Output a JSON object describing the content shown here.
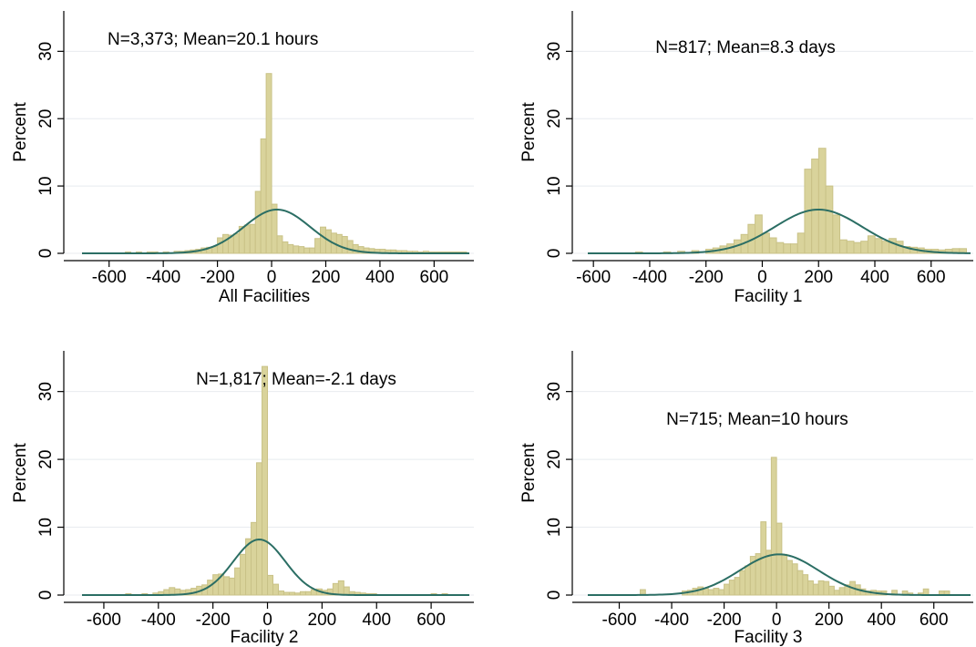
{
  "chart_data": [
    {
      "type": "bar",
      "xlabel": "All Facilities",
      "ylabel": "Percent",
      "annotation": "N=3,373; Mean=20.1 hours",
      "xlim": [
        -700,
        730
      ],
      "ylim": [
        0,
        36
      ],
      "xticks": [
        -600,
        -400,
        -200,
        0,
        200,
        400,
        600
      ],
      "yticks": [
        0,
        10,
        20,
        30
      ],
      "grid": true,
      "bin_width": 20,
      "bins": [
        {
          "x": -530,
          "y": 0.2
        },
        {
          "x": -490,
          "y": 0.2
        },
        {
          "x": -450,
          "y": 0.2
        },
        {
          "x": -430,
          "y": 0.2
        },
        {
          "x": -390,
          "y": 0.2
        },
        {
          "x": -350,
          "y": 0.3
        },
        {
          "x": -330,
          "y": 0.3
        },
        {
          "x": -310,
          "y": 0.4
        },
        {
          "x": -290,
          "y": 0.5
        },
        {
          "x": -270,
          "y": 0.6
        },
        {
          "x": -250,
          "y": 0.8
        },
        {
          "x": -230,
          "y": 0.9
        },
        {
          "x": -210,
          "y": 1.0
        },
        {
          "x": -190,
          "y": 2.3
        },
        {
          "x": -170,
          "y": 2.8
        },
        {
          "x": -150,
          "y": 2.7
        },
        {
          "x": -130,
          "y": 2.9
        },
        {
          "x": -110,
          "y": 4.0
        },
        {
          "x": -90,
          "y": 4.2
        },
        {
          "x": -70,
          "y": 4.3
        },
        {
          "x": -50,
          "y": 9.2
        },
        {
          "x": -30,
          "y": 17.0
        },
        {
          "x": -10,
          "y": 26.7
        },
        {
          "x": 10,
          "y": 7.3
        },
        {
          "x": 30,
          "y": 2.6
        },
        {
          "x": 50,
          "y": 1.7
        },
        {
          "x": 70,
          "y": 1.3
        },
        {
          "x": 90,
          "y": 1.1
        },
        {
          "x": 110,
          "y": 1.0
        },
        {
          "x": 130,
          "y": 0.8
        },
        {
          "x": 150,
          "y": 0.8
        },
        {
          "x": 170,
          "y": 2.2
        },
        {
          "x": 190,
          "y": 3.9
        },
        {
          "x": 210,
          "y": 3.5
        },
        {
          "x": 230,
          "y": 3.0
        },
        {
          "x": 250,
          "y": 2.8
        },
        {
          "x": 270,
          "y": 2.5
        },
        {
          "x": 290,
          "y": 1.9
        },
        {
          "x": 310,
          "y": 1.3
        },
        {
          "x": 330,
          "y": 1.0
        },
        {
          "x": 350,
          "y": 0.8
        },
        {
          "x": 370,
          "y": 0.7
        },
        {
          "x": 390,
          "y": 0.6
        },
        {
          "x": 410,
          "y": 0.6
        },
        {
          "x": 430,
          "y": 0.5
        },
        {
          "x": 450,
          "y": 0.5
        },
        {
          "x": 470,
          "y": 0.4
        },
        {
          "x": 490,
          "y": 0.4
        },
        {
          "x": 510,
          "y": 0.3
        },
        {
          "x": 530,
          "y": 0.3
        },
        {
          "x": 550,
          "y": 0.2
        },
        {
          "x": 570,
          "y": 0.3
        },
        {
          "x": 590,
          "y": 0.2
        },
        {
          "x": 610,
          "y": 0.2
        },
        {
          "x": 630,
          "y": 0.2
        },
        {
          "x": 650,
          "y": 0.2
        },
        {
          "x": 670,
          "y": 0.2
        },
        {
          "x": 690,
          "y": 0.2
        },
        {
          "x": 710,
          "y": 0.2
        }
      ],
      "normal_curve": {
        "mean": 20,
        "sd": 122,
        "peak": 6.5
      }
    },
    {
      "type": "bar",
      "xlabel": "Facility 1",
      "ylabel": "Percent",
      "annotation": "N=817; Mean=8.3 days",
      "xlim": [
        -620,
        740
      ],
      "ylim": [
        0,
        36
      ],
      "xticks": [
        -600,
        -400,
        -200,
        0,
        200,
        400,
        600
      ],
      "yticks": [
        0,
        10,
        20,
        30
      ],
      "grid": true,
      "bin_width": 25,
      "bins": [
        {
          "x": -438,
          "y": 0.2
        },
        {
          "x": -338,
          "y": 0.2
        },
        {
          "x": -288,
          "y": 0.3
        },
        {
          "x": -238,
          "y": 0.4
        },
        {
          "x": -188,
          "y": 0.6
        },
        {
          "x": -163,
          "y": 0.8
        },
        {
          "x": -138,
          "y": 1.1
        },
        {
          "x": -113,
          "y": 1.4
        },
        {
          "x": -88,
          "y": 2.0
        },
        {
          "x": -63,
          "y": 2.8
        },
        {
          "x": -38,
          "y": 4.3
        },
        {
          "x": -13,
          "y": 5.7
        },
        {
          "x": 13,
          "y": 3.0
        },
        {
          "x": 38,
          "y": 2.3
        },
        {
          "x": 63,
          "y": 1.6
        },
        {
          "x": 88,
          "y": 1.4
        },
        {
          "x": 113,
          "y": 1.4
        },
        {
          "x": 138,
          "y": 3.0
        },
        {
          "x": 163,
          "y": 12.5
        },
        {
          "x": 188,
          "y": 14.0
        },
        {
          "x": 213,
          "y": 15.6
        },
        {
          "x": 238,
          "y": 10.0
        },
        {
          "x": 263,
          "y": 5.7
        },
        {
          "x": 288,
          "y": 2.0
        },
        {
          "x": 313,
          "y": 1.8
        },
        {
          "x": 338,
          "y": 1.6
        },
        {
          "x": 363,
          "y": 1.8
        },
        {
          "x": 388,
          "y": 2.6
        },
        {
          "x": 413,
          "y": 2.2
        },
        {
          "x": 438,
          "y": 1.8
        },
        {
          "x": 463,
          "y": 2.2
        },
        {
          "x": 488,
          "y": 1.8
        },
        {
          "x": 513,
          "y": 1.0
        },
        {
          "x": 538,
          "y": 0.9
        },
        {
          "x": 563,
          "y": 0.8
        },
        {
          "x": 588,
          "y": 0.6
        },
        {
          "x": 613,
          "y": 0.6
        },
        {
          "x": 638,
          "y": 0.5
        },
        {
          "x": 663,
          "y": 0.6
        },
        {
          "x": 688,
          "y": 0.7
        },
        {
          "x": 713,
          "y": 0.7
        }
      ],
      "normal_curve": {
        "mean": 200,
        "sd": 155,
        "peak": 6.5
      }
    },
    {
      "type": "bar",
      "xlabel": "Facility 2",
      "ylabel": "Percent",
      "annotation": "N=1,817; Mean=-2.1 days",
      "xlim": [
        -680,
        740
      ],
      "ylim": [
        0,
        36
      ],
      "xticks": [
        -600,
        -400,
        -200,
        0,
        200,
        400,
        600
      ],
      "yticks": [
        0,
        10,
        20,
        30
      ],
      "grid": true,
      "bin_width": 20,
      "bins": [
        {
          "x": -510,
          "y": 0.2
        },
        {
          "x": -450,
          "y": 0.2
        },
        {
          "x": -410,
          "y": 0.3
        },
        {
          "x": -390,
          "y": 0.5
        },
        {
          "x": -370,
          "y": 0.8
        },
        {
          "x": -350,
          "y": 1.1
        },
        {
          "x": -330,
          "y": 0.9
        },
        {
          "x": -310,
          "y": 0.7
        },
        {
          "x": -290,
          "y": 0.8
        },
        {
          "x": -270,
          "y": 1.0
        },
        {
          "x": -250,
          "y": 1.3
        },
        {
          "x": -230,
          "y": 1.5
        },
        {
          "x": -210,
          "y": 2.2
        },
        {
          "x": -190,
          "y": 3.0
        },
        {
          "x": -170,
          "y": 3.1
        },
        {
          "x": -150,
          "y": 2.7
        },
        {
          "x": -130,
          "y": 2.5
        },
        {
          "x": -110,
          "y": 4.0
        },
        {
          "x": -90,
          "y": 6.0
        },
        {
          "x": -70,
          "y": 8.3
        },
        {
          "x": -50,
          "y": 10.7
        },
        {
          "x": -30,
          "y": 19.5
        },
        {
          "x": -10,
          "y": 33.7
        },
        {
          "x": 10,
          "y": 2.9
        },
        {
          "x": 30,
          "y": 1.6
        },
        {
          "x": 50,
          "y": 0.6
        },
        {
          "x": 70,
          "y": 0.4
        },
        {
          "x": 90,
          "y": 0.4
        },
        {
          "x": 110,
          "y": 0.3
        },
        {
          "x": 130,
          "y": 0.5
        },
        {
          "x": 150,
          "y": 0.5
        },
        {
          "x": 170,
          "y": 0.8
        },
        {
          "x": 190,
          "y": 0.9
        },
        {
          "x": 210,
          "y": 0.7
        },
        {
          "x": 230,
          "y": 0.9
        },
        {
          "x": 250,
          "y": 1.7
        },
        {
          "x": 270,
          "y": 2.1
        },
        {
          "x": 290,
          "y": 1.2
        },
        {
          "x": 310,
          "y": 0.5
        },
        {
          "x": 330,
          "y": 0.4
        },
        {
          "x": 350,
          "y": 0.3
        },
        {
          "x": 370,
          "y": 0.2
        },
        {
          "x": 390,
          "y": 0.2
        },
        {
          "x": 610,
          "y": 0.2
        },
        {
          "x": 650,
          "y": 0.2
        }
      ],
      "normal_curve": {
        "mean": -30,
        "sd": 95,
        "peak": 8.2
      }
    },
    {
      "type": "bar",
      "xlabel": "Facility 3",
      "ylabel": "Percent",
      "annotation": "N=715; Mean=10 hours",
      "xlim": [
        -720,
        740
      ],
      "ylim": [
        0,
        36
      ],
      "xticks": [
        -600,
        -400,
        -200,
        0,
        200,
        400,
        600
      ],
      "yticks": [
        0,
        10,
        20,
        30
      ],
      "grid": true,
      "bin_width": 20,
      "bins": [
        {
          "x": -510,
          "y": 0.8
        },
        {
          "x": -350,
          "y": 0.6
        },
        {
          "x": -330,
          "y": 0.7
        },
        {
          "x": -310,
          "y": 1.0
        },
        {
          "x": -290,
          "y": 1.2
        },
        {
          "x": -270,
          "y": 1.0
        },
        {
          "x": -250,
          "y": 0.8
        },
        {
          "x": -230,
          "y": 1.0
        },
        {
          "x": -210,
          "y": 0.8
        },
        {
          "x": -190,
          "y": 1.6
        },
        {
          "x": -170,
          "y": 2.2
        },
        {
          "x": -150,
          "y": 2.6
        },
        {
          "x": -130,
          "y": 3.6
        },
        {
          "x": -110,
          "y": 4.3
        },
        {
          "x": -90,
          "y": 5.7
        },
        {
          "x": -70,
          "y": 6.1
        },
        {
          "x": -50,
          "y": 10.8
        },
        {
          "x": -30,
          "y": 6.6
        },
        {
          "x": -10,
          "y": 20.3
        },
        {
          "x": 10,
          "y": 10.6
        },
        {
          "x": 30,
          "y": 6.0
        },
        {
          "x": 50,
          "y": 5.1
        },
        {
          "x": 70,
          "y": 4.6
        },
        {
          "x": 90,
          "y": 3.6
        },
        {
          "x": 110,
          "y": 3.0
        },
        {
          "x": 130,
          "y": 2.1
        },
        {
          "x": 150,
          "y": 1.6
        },
        {
          "x": 170,
          "y": 2.1
        },
        {
          "x": 190,
          "y": 2.0
        },
        {
          "x": 210,
          "y": 1.3
        },
        {
          "x": 230,
          "y": 0.7
        },
        {
          "x": 250,
          "y": 1.1
        },
        {
          "x": 270,
          "y": 1.5
        },
        {
          "x": 290,
          "y": 2.0
        },
        {
          "x": 310,
          "y": 1.5
        },
        {
          "x": 330,
          "y": 0.9
        },
        {
          "x": 350,
          "y": 0.6
        },
        {
          "x": 370,
          "y": 0.7
        },
        {
          "x": 390,
          "y": 0.6
        },
        {
          "x": 410,
          "y": 0.6
        },
        {
          "x": 450,
          "y": 0.7
        },
        {
          "x": 490,
          "y": 0.6
        },
        {
          "x": 510,
          "y": 0.3
        },
        {
          "x": 550,
          "y": 0.3
        },
        {
          "x": 570,
          "y": 0.9
        },
        {
          "x": 630,
          "y": 0.6
        },
        {
          "x": 650,
          "y": 0.6
        }
      ],
      "normal_curve": {
        "mean": 10,
        "sd": 150,
        "peak": 6.0
      }
    }
  ],
  "colors": {
    "bar_fill": "#d9d39b",
    "bar_stroke": "#c9c287",
    "curve": "#2b6e64",
    "grid": "#e8ebef",
    "axis": "#000000"
  }
}
